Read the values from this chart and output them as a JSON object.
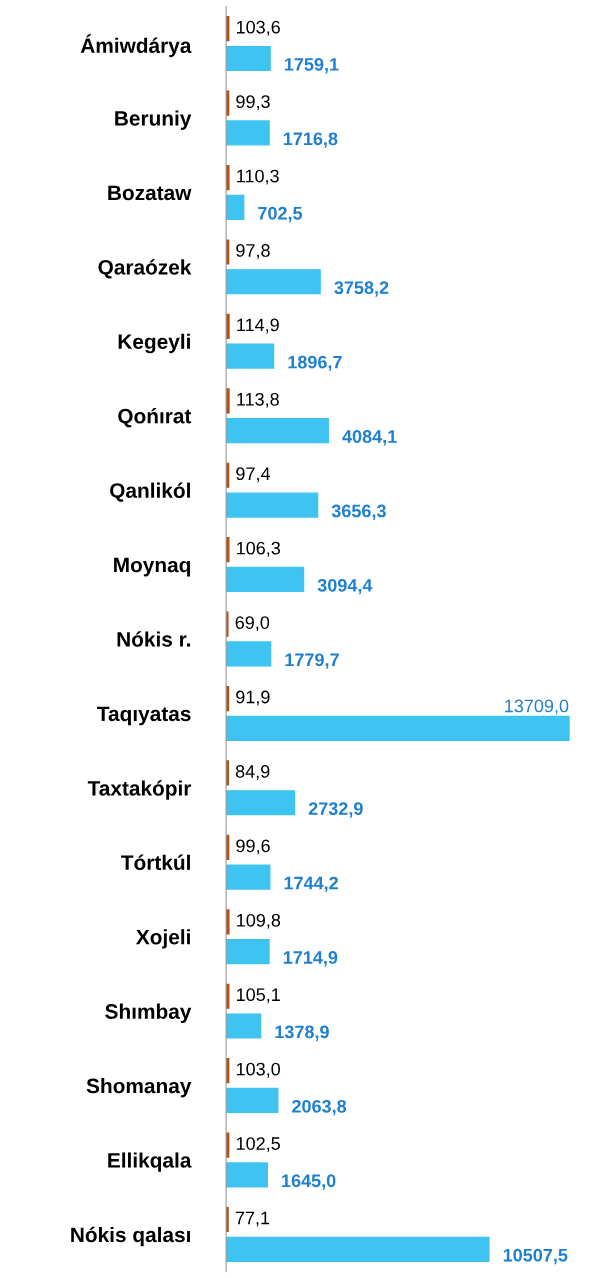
{
  "chart_data": {
    "type": "bar",
    "orientation": "horizontal",
    "tick_labels": "y",
    "grid": false,
    "legend": false,
    "categories": [
      "Ámiwdárya",
      "Beruniy",
      "Bozataw",
      "Qaraózek",
      "Kegeyli",
      "Qońırat",
      "Qanlikól",
      "Moynaq",
      "Nókis r.",
      "Taqıyatas",
      "Taxtakópir",
      "Tórtkúl",
      "Xojeli",
      "Shımbay",
      "Shomanay",
      "Ellikqala",
      "Nókis qalası"
    ],
    "series": [
      {
        "color": "#b5500f",
        "values": [
          103.6,
          99.3,
          110.3,
          97.8,
          114.9,
          113.8,
          97.4,
          106.3,
          69.0,
          91.9,
          84.9,
          99.6,
          109.8,
          105.1,
          103.0,
          102.5,
          77.1
        ],
        "value_labels": [
          "103,6",
          "99,3",
          "110,3",
          "97,8",
          "114,9",
          "113,8",
          "97,4",
          "106,3",
          "69,0",
          "91,9",
          "84,9",
          "99,6",
          "109,8",
          "105,1",
          "103,0",
          "102,5",
          "77,1"
        ]
      },
      {
        "color": "#3fc3f0",
        "values": [
          1759.1,
          1716.8,
          702.5,
          3758.2,
          1896.7,
          4084.1,
          3656.3,
          3094.4,
          1779.7,
          13709.0,
          2732.9,
          1744.2,
          1714.9,
          1378.9,
          2063.8,
          1645.0,
          10507.5
        ],
        "value_labels": [
          "1759,1",
          "1716,8",
          "702,5",
          "3758,2",
          "1896,7",
          "4084,1",
          "3656,3",
          "3094,4",
          "1779,7",
          "13709,0",
          "2732,9",
          "1744,2",
          "1714,9",
          "1378,9",
          "2063,8",
          "1645,0",
          "10507,5"
        ]
      }
    ]
  }
}
